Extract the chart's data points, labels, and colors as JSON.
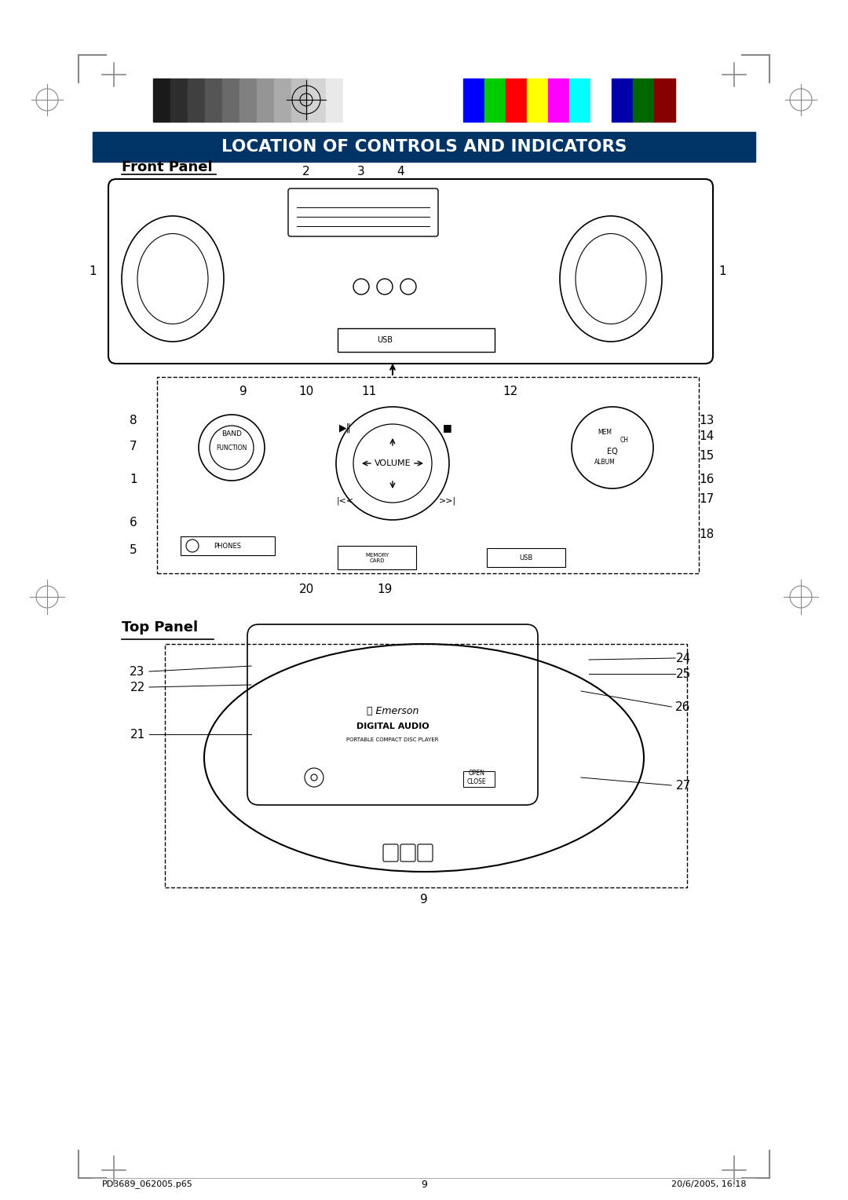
{
  "page_bg": "#ffffff",
  "title_text": "LOCATION OF CONTROLS AND INDICATORS",
  "title_bg": "#003366",
  "title_color": "#ffffff",
  "front_panel_label": "Front Panel",
  "top_panel_label": "Top Panel",
  "footer_left": "PD3689_062005.p65",
  "footer_center": "9",
  "footer_right": "20/6/2005, 16:18",
  "page_number": "9",
  "color_bars_left": [
    "#1a1a1a",
    "#2d2d2d",
    "#404040",
    "#555555",
    "#6a6a6a",
    "#808080",
    "#959595",
    "#aaaaaa",
    "#bfbfbf",
    "#d4d4d4",
    "#e9e9e9",
    "#ffffff"
  ],
  "color_bars_right": [
    "#0000ff",
    "#00cc00",
    "#ff0000",
    "#ffff00",
    "#ff00ff",
    "#00ffff",
    "#ffffff",
    "#0000aa",
    "#006600",
    "#880000"
  ]
}
